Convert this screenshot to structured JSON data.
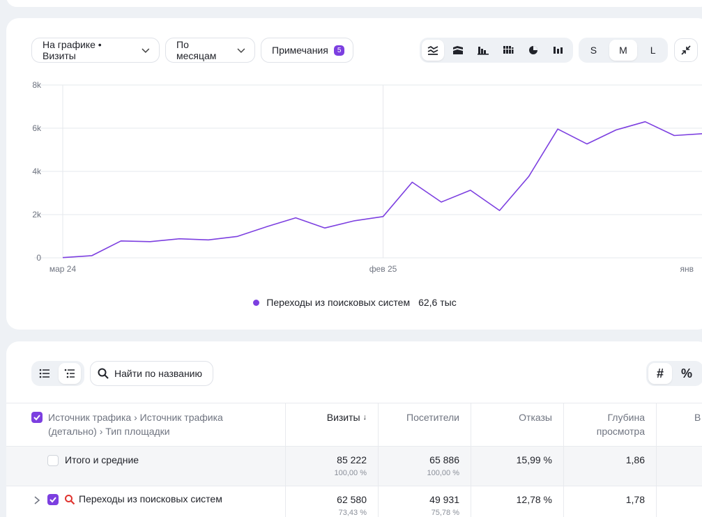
{
  "toolbar": {
    "chart_metric": "На графике • Визиты",
    "grouping": "По месяцам",
    "notes_label": "Примечания",
    "notes_count": "5",
    "sizes": [
      "S",
      "M",
      "L"
    ],
    "active_size": "M"
  },
  "chart_data": {
    "type": "line",
    "yticks": [
      "0",
      "2k",
      "4k",
      "6k",
      "8k"
    ],
    "ylim": [
      0,
      8000
    ],
    "xtick_labels": [
      "мар 24",
      "фев 25",
      "янв"
    ],
    "series": [
      {
        "name": "Переходы из поисковых систем",
        "color": "#7c3fe0",
        "values": [
          10,
          100,
          780,
          750,
          880,
          830,
          990,
          1440,
          1850,
          1380,
          1710,
          1910,
          3500,
          2580,
          3130,
          2190,
          3760,
          5960,
          5270,
          5920,
          6300,
          5660,
          5750
        ]
      }
    ],
    "legend": {
      "label": "Переходы из поисковых систем",
      "value": "62,6 тыс"
    },
    "grid": true
  },
  "table_toolbar": {
    "search_placeholder": "Найти по названию",
    "hash_label": "#",
    "percent_label": "%"
  },
  "table": {
    "dimension_header": "Источник трафика › Источник трафика (детально) › Тип площадки",
    "columns": [
      "Визиты",
      "Посетители",
      "Отказы",
      "Глубина просмотра",
      "В"
    ],
    "sort_arrow": "↓",
    "total": {
      "label": "Итого и средние",
      "visits": "85 222",
      "visits_pct": "100,00 %",
      "visitors": "65 886",
      "visitors_pct": "100,00 %",
      "bounce": "15,99 %",
      "depth": "1,86"
    },
    "rows": [
      {
        "label": "Переходы из поисковых систем",
        "visits": "62 580",
        "visits_pct": "73,43 %",
        "visitors": "49 931",
        "visitors_pct": "75,78 %",
        "bounce": "12,78 %",
        "depth": "1,78"
      }
    ]
  }
}
